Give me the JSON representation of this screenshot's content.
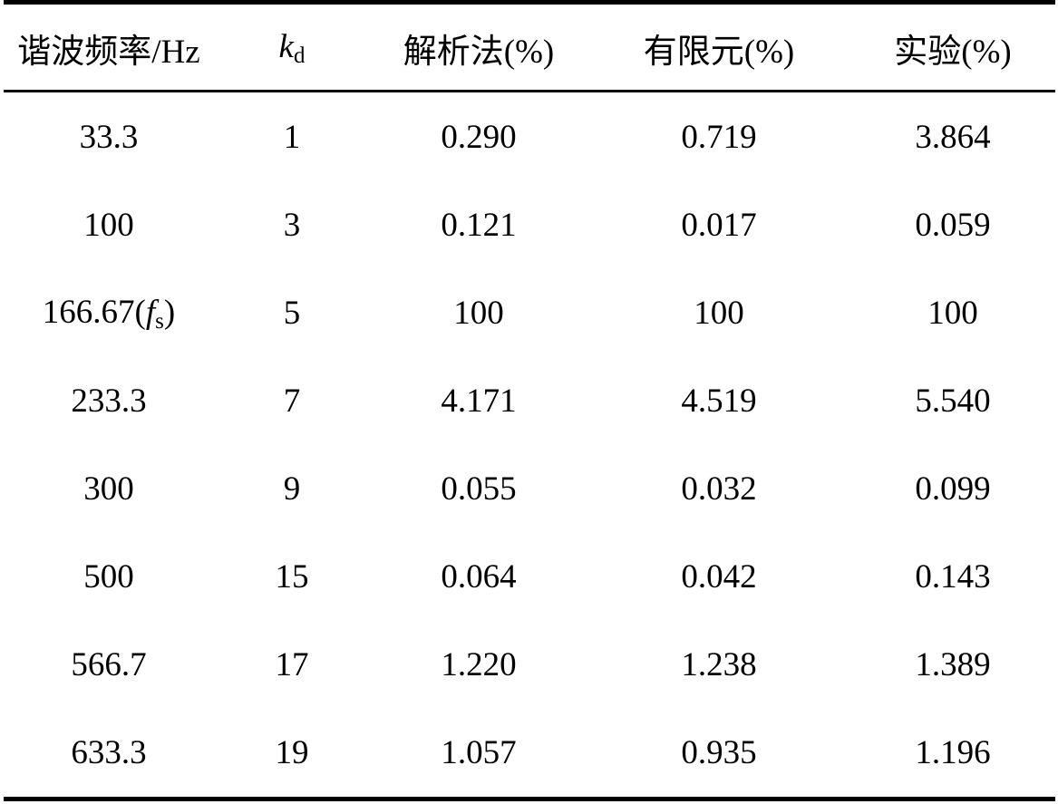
{
  "table": {
    "headers": {
      "freq": "谐波频率/Hz",
      "kd_main": "k",
      "kd_sub": "d",
      "analytic": "解析法(%)",
      "fem": "有限元(%)",
      "experiment": "实验(%)"
    },
    "rows": [
      {
        "freq": "33.3",
        "kd": "1",
        "analytic": "0.290",
        "fem": "0.719",
        "experiment": "3.864"
      },
      {
        "freq": "100",
        "kd": "3",
        "analytic": "0.121",
        "fem": "0.017",
        "experiment": "0.059"
      },
      {
        "freq": "166.67",
        "freq_open": "(",
        "freq_sym": "f",
        "freq_sub": "s",
        "freq_close": ")",
        "kd": "5",
        "analytic": "100",
        "fem": "100",
        "experiment": "100"
      },
      {
        "freq": "233.3",
        "kd": "7",
        "analytic": "4.171",
        "fem": "4.519",
        "experiment": "5.540"
      },
      {
        "freq": "300",
        "kd": "9",
        "analytic": "0.055",
        "fem": "0.032",
        "experiment": "0.099"
      },
      {
        "freq": "500",
        "kd": "15",
        "analytic": "0.064",
        "fem": "0.042",
        "experiment": "0.143"
      },
      {
        "freq": "566.7",
        "kd": "17",
        "analytic": "1.220",
        "fem": "1.238",
        "experiment": "1.389"
      },
      {
        "freq": "633.3",
        "kd": "19",
        "analytic": "1.057",
        "fem": "0.935",
        "experiment": "1.196"
      }
    ]
  }
}
